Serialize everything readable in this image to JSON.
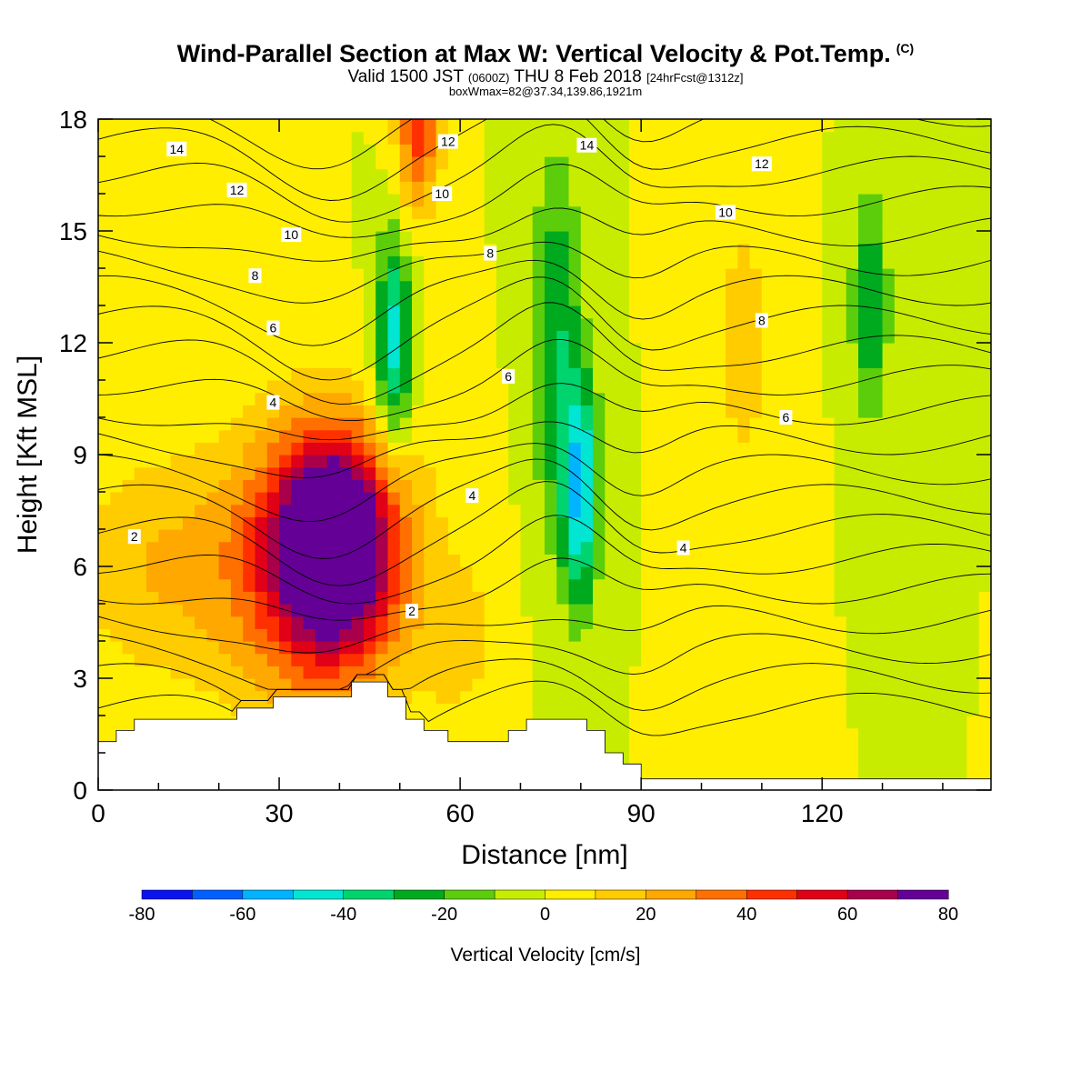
{
  "titles": {
    "main": "Wind-Parallel Section at Max W: Vertical Velocity & Pot.Temp.",
    "copyright": "(C)",
    "valid_a": "Valid 1500 JST",
    "valid_utc": "(0600Z)",
    "valid_b": "THU 8 Feb 2018",
    "forecast": "[24hrFcst@1312z]",
    "box_info": "boxWmax=82@37.34,139.86,1921m"
  },
  "chart_data": {
    "type": "heatmap",
    "title": "Wind-Parallel Section at Max W: Vertical Velocity & Pot.Temp.",
    "xlabel": "Distance [nm]",
    "ylabel": "Height [Kft MSL]",
    "xlim": [
      0,
      148
    ],
    "ylim": [
      0,
      18
    ],
    "x_ticks": [
      0,
      30,
      60,
      90,
      120
    ],
    "y_ticks": [
      0,
      3,
      6,
      9,
      12,
      15,
      18
    ],
    "colorbar": {
      "label": "Vertical Velocity [cm/s]",
      "ticks": [
        -80,
        -60,
        -40,
        -20,
        0,
        20,
        40,
        60,
        80
      ],
      "bins": [
        {
          "from": -80,
          "to": -70,
          "color": "#0a14f0"
        },
        {
          "from": -70,
          "to": -60,
          "color": "#0060ff"
        },
        {
          "from": -60,
          "to": -50,
          "color": "#00b4ff"
        },
        {
          "from": -50,
          "to": -40,
          "color": "#00e6d2"
        },
        {
          "from": -40,
          "to": -30,
          "color": "#00d46e"
        },
        {
          "from": -30,
          "to": -20,
          "color": "#00aa1e"
        },
        {
          "from": -20,
          "to": -10,
          "color": "#5ccd0a"
        },
        {
          "from": -10,
          "to": 0,
          "color": "#c8ec00"
        },
        {
          "from": 0,
          "to": 10,
          "color": "#ffee00"
        },
        {
          "from": 10,
          "to": 20,
          "color": "#ffcc00"
        },
        {
          "from": 20,
          "to": 30,
          "color": "#ffa800"
        },
        {
          "from": 30,
          "to": 40,
          "color": "#ff7000"
        },
        {
          "from": 40,
          "to": 50,
          "color": "#ff3000"
        },
        {
          "from": 50,
          "to": 60,
          "color": "#e00018"
        },
        {
          "from": 60,
          "to": 70,
          "color": "#a8004a"
        },
        {
          "from": 70,
          "to": 80,
          "color": "#640096"
        }
      ]
    },
    "vertical_velocity_features": [
      {
        "x": 39,
        "y": 6.7,
        "value": 82,
        "sx": 9,
        "sy": 2.6
      },
      {
        "x": 36,
        "y": 6.0,
        "value": 52,
        "sx": 16,
        "sy": 3.8
      },
      {
        "x": 8,
        "y": 6.0,
        "value": 18,
        "sx": 14,
        "sy": 3.0
      },
      {
        "x": 53,
        "y": 18.0,
        "value": 48,
        "sx": 3.5,
        "sy": 2.4
      },
      {
        "x": 49,
        "y": 12.0,
        "value": -48,
        "sx": 3.0,
        "sy": 2.8
      },
      {
        "x": 80,
        "y": 8.0,
        "value": -52,
        "sx": 3.0,
        "sy": 3.0
      },
      {
        "x": 76,
        "y": 12.0,
        "value": -30,
        "sx": 4.0,
        "sy": 5.0
      },
      {
        "x": 128,
        "y": 13.0,
        "value": -30,
        "sx": 3.0,
        "sy": 3.0
      },
      {
        "x": 107,
        "y": 12.0,
        "value": 14,
        "sx": 6.0,
        "sy": 4.5
      },
      {
        "x": 60,
        "y": 4.0,
        "value": 14,
        "sx": 6.0,
        "sy": 2.0
      }
    ],
    "potential_temperature_contour_labels": [
      {
        "label": "14",
        "x": 13,
        "y": 17.2
      },
      {
        "label": "12",
        "x": 23,
        "y": 16.1
      },
      {
        "label": "10",
        "x": 32,
        "y": 14.9
      },
      {
        "label": "8",
        "x": 26,
        "y": 13.8
      },
      {
        "label": "6",
        "x": 29,
        "y": 12.4
      },
      {
        "label": "4",
        "x": 29,
        "y": 10.4
      },
      {
        "label": "2",
        "x": 6,
        "y": 6.8
      },
      {
        "label": "12",
        "x": 58,
        "y": 17.4
      },
      {
        "label": "10",
        "x": 57,
        "y": 16.0
      },
      {
        "label": "8",
        "x": 65,
        "y": 14.4
      },
      {
        "label": "6",
        "x": 68,
        "y": 11.1
      },
      {
        "label": "4",
        "x": 62,
        "y": 7.9
      },
      {
        "label": "2",
        "x": 52,
        "y": 4.8
      },
      {
        "label": "14",
        "x": 81,
        "y": 17.3
      },
      {
        "label": "12",
        "x": 110,
        "y": 16.8
      },
      {
        "label": "10",
        "x": 104,
        "y": 15.5
      },
      {
        "label": "8",
        "x": 110,
        "y": 12.6
      },
      {
        "label": "6",
        "x": 114,
        "y": 10.0
      },
      {
        "label": "4",
        "x": 97,
        "y": 6.5
      }
    ],
    "terrain_profile": [
      [
        0,
        1.3
      ],
      [
        3,
        1.6
      ],
      [
        6,
        1.9
      ],
      [
        23,
        2.2
      ],
      [
        29,
        2.5
      ],
      [
        42,
        2.9
      ],
      [
        48,
        2.5
      ],
      [
        51,
        1.9
      ],
      [
        54,
        1.6
      ],
      [
        58,
        1.3
      ],
      [
        68,
        1.6
      ],
      [
        71,
        1.9
      ],
      [
        81,
        1.6
      ],
      [
        84,
        1.0
      ],
      [
        87,
        0.7
      ],
      [
        90,
        0.3
      ],
      [
        148,
        0.3
      ]
    ]
  }
}
